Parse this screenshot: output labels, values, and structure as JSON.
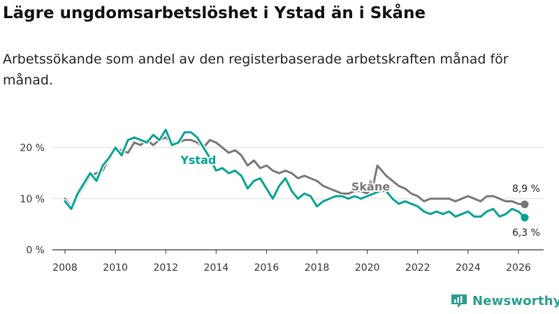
{
  "title": "Lägre ungdomsarbetslöshet i Ystad än i Skåne",
  "subtitle": "Arbetssökande som andel av den registerbaserade arbetskraften månad för månad.",
  "brand": {
    "name": "Newsworthy",
    "logo_icon": "bar-chart-logo-icon"
  },
  "colors": {
    "ystad": "#00a392",
    "skane": "#7a7579",
    "grid": "#d9d9d9",
    "axis": "#333333"
  },
  "chart_data": {
    "type": "line",
    "title": "Lägre ungdomsarbetslöshet i Ystad än i Skåne",
    "xlabel": "",
    "ylabel": "",
    "xlim": [
      2007.5,
      2027
    ],
    "ylim": [
      0,
      25
    ],
    "y_ticks": [
      0,
      10,
      20
    ],
    "y_tick_labels": [
      "0 %",
      "10 %",
      "20 %"
    ],
    "x_ticks": [
      2008,
      2010,
      2012,
      2014,
      2016,
      2018,
      2020,
      2022,
      2024,
      2026
    ],
    "x_tick_labels": [
      "2008",
      "2010",
      "2012",
      "2014",
      "2016",
      "2018",
      "2020",
      "2022",
      "2024",
      "2026"
    ],
    "grid": true,
    "series": [
      {
        "name": "Skåne",
        "label": "Skåne",
        "end_label": "8,9 %",
        "points": [
          [
            2008.0,
            10.0
          ],
          [
            2008.25,
            8.5
          ],
          [
            2008.5,
            10.5
          ],
          [
            2008.75,
            12.5
          ],
          [
            2009.0,
            14.5
          ],
          [
            2009.25,
            15.0
          ],
          [
            2009.5,
            15.5
          ],
          [
            2009.75,
            18.0
          ],
          [
            2010.0,
            19.5
          ],
          [
            2010.25,
            19.5
          ],
          [
            2010.5,
            19.0
          ],
          [
            2010.75,
            21.0
          ],
          [
            2011.0,
            20.5
          ],
          [
            2011.25,
            21.5
          ],
          [
            2011.5,
            20.5
          ],
          [
            2011.75,
            21.5
          ],
          [
            2012.0,
            22.0
          ],
          [
            2012.25,
            21.0
          ],
          [
            2012.5,
            21.0
          ],
          [
            2012.75,
            21.5
          ],
          [
            2013.0,
            21.5
          ],
          [
            2013.25,
            21.0
          ],
          [
            2013.5,
            20.0
          ],
          [
            2013.75,
            21.5
          ],
          [
            2014.0,
            21.0
          ],
          [
            2014.25,
            20.0
          ],
          [
            2014.5,
            19.0
          ],
          [
            2014.75,
            19.5
          ],
          [
            2015.0,
            18.5
          ],
          [
            2015.25,
            16.5
          ],
          [
            2015.5,
            17.5
          ],
          [
            2015.75,
            16.0
          ],
          [
            2016.0,
            16.5
          ],
          [
            2016.25,
            15.5
          ],
          [
            2016.5,
            15.0
          ],
          [
            2016.75,
            15.5
          ],
          [
            2017.0,
            15.0
          ],
          [
            2017.25,
            14.0
          ],
          [
            2017.5,
            14.5
          ],
          [
            2017.75,
            14.0
          ],
          [
            2018.0,
            13.5
          ],
          [
            2018.25,
            12.5
          ],
          [
            2018.5,
            12.0
          ],
          [
            2018.75,
            11.5
          ],
          [
            2019.0,
            11.0
          ],
          [
            2019.25,
            11.0
          ],
          [
            2019.5,
            11.5
          ],
          [
            2019.75,
            11.5
          ],
          [
            2020.0,
            11.0
          ],
          [
            2020.25,
            13.0
          ],
          [
            2020.4,
            16.5
          ],
          [
            2020.75,
            14.5
          ],
          [
            2021.0,
            13.5
          ],
          [
            2021.25,
            12.5
          ],
          [
            2021.5,
            12.0
          ],
          [
            2021.75,
            11.0
          ],
          [
            2022.0,
            10.5
          ],
          [
            2022.25,
            9.5
          ],
          [
            2022.5,
            10.0
          ],
          [
            2022.75,
            10.0
          ],
          [
            2023.0,
            10.0
          ],
          [
            2023.25,
            10.0
          ],
          [
            2023.5,
            9.5
          ],
          [
            2023.75,
            10.0
          ],
          [
            2024.0,
            10.5
          ],
          [
            2024.25,
            10.0
          ],
          [
            2024.5,
            9.5
          ],
          [
            2024.75,
            10.5
          ],
          [
            2025.0,
            10.5
          ],
          [
            2025.25,
            10.0
          ],
          [
            2025.5,
            9.5
          ],
          [
            2025.75,
            9.5
          ],
          [
            2026.0,
            9.0
          ],
          [
            2026.25,
            8.9
          ]
        ]
      },
      {
        "name": "Ystad",
        "label": "Ystad",
        "end_label": "6,3 %",
        "points": [
          [
            2008.0,
            9.5
          ],
          [
            2008.25,
            8.0
          ],
          [
            2008.5,
            11.0
          ],
          [
            2008.75,
            13.0
          ],
          [
            2009.0,
            15.0
          ],
          [
            2009.25,
            13.5
          ],
          [
            2009.5,
            16.5
          ],
          [
            2009.75,
            18.0
          ],
          [
            2010.0,
            20.0
          ],
          [
            2010.25,
            18.5
          ],
          [
            2010.5,
            21.5
          ],
          [
            2010.75,
            22.0
          ],
          [
            2011.0,
            21.5
          ],
          [
            2011.25,
            21.0
          ],
          [
            2011.5,
            22.5
          ],
          [
            2011.75,
            21.5
          ],
          [
            2012.0,
            23.5
          ],
          [
            2012.25,
            20.5
          ],
          [
            2012.5,
            21.0
          ],
          [
            2012.75,
            23.0
          ],
          [
            2013.0,
            23.0
          ],
          [
            2013.25,
            22.0
          ],
          [
            2013.5,
            20.0
          ],
          [
            2013.75,
            18.0
          ],
          [
            2014.0,
            15.5
          ],
          [
            2014.25,
            16.0
          ],
          [
            2014.5,
            15.0
          ],
          [
            2014.75,
            15.5
          ],
          [
            2015.0,
            14.5
          ],
          [
            2015.25,
            12.0
          ],
          [
            2015.5,
            13.5
          ],
          [
            2015.75,
            14.0
          ],
          [
            2016.0,
            12.0
          ],
          [
            2016.25,
            10.0
          ],
          [
            2016.5,
            12.5
          ],
          [
            2016.75,
            14.0
          ],
          [
            2017.0,
            11.5
          ],
          [
            2017.25,
            10.0
          ],
          [
            2017.5,
            11.0
          ],
          [
            2017.75,
            10.5
          ],
          [
            2018.0,
            8.5
          ],
          [
            2018.25,
            9.5
          ],
          [
            2018.5,
            10.0
          ],
          [
            2018.75,
            10.5
          ],
          [
            2019.0,
            10.5
          ],
          [
            2019.25,
            10.0
          ],
          [
            2019.5,
            10.5
          ],
          [
            2019.75,
            10.0
          ],
          [
            2020.0,
            10.5
          ],
          [
            2020.25,
            11.0
          ],
          [
            2020.5,
            11.5
          ],
          [
            2020.75,
            11.5
          ],
          [
            2021.0,
            10.0
          ],
          [
            2021.25,
            9.0
          ],
          [
            2021.5,
            9.5
          ],
          [
            2021.75,
            9.0
          ],
          [
            2022.0,
            8.5
          ],
          [
            2022.25,
            7.5
          ],
          [
            2022.5,
            7.0
          ],
          [
            2022.75,
            7.5
          ],
          [
            2023.0,
            7.0
          ],
          [
            2023.25,
            7.5
          ],
          [
            2023.5,
            6.5
          ],
          [
            2023.75,
            7.0
          ],
          [
            2024.0,
            7.5
          ],
          [
            2024.25,
            6.5
          ],
          [
            2024.5,
            6.5
          ],
          [
            2024.75,
            7.5
          ],
          [
            2025.0,
            8.0
          ],
          [
            2025.25,
            6.5
          ],
          [
            2025.5,
            7.0
          ],
          [
            2025.75,
            8.0
          ],
          [
            2026.0,
            7.5
          ],
          [
            2026.25,
            6.3
          ]
        ]
      }
    ]
  }
}
